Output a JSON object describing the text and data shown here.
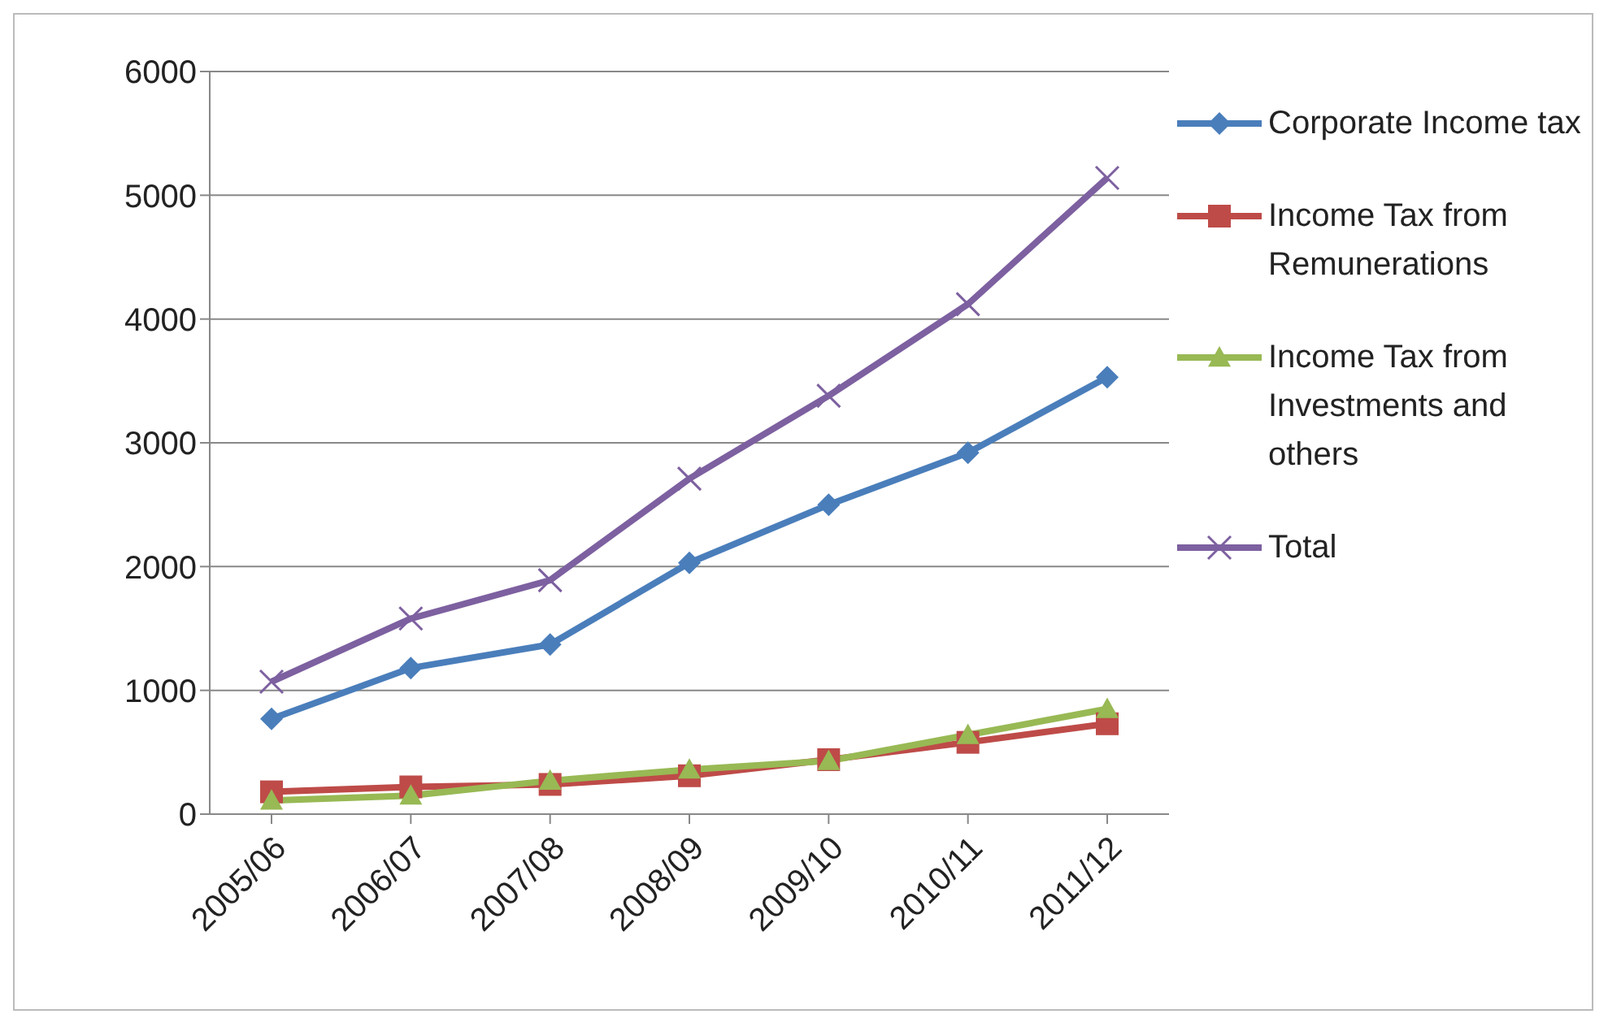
{
  "chart_data": {
    "type": "line",
    "categories": [
      "2005/06",
      "2006/07",
      "2007/08",
      "2008/09",
      "2009/10",
      "2010/11",
      "2011/12"
    ],
    "series": [
      {
        "name": "Corporate Income tax",
        "color": "#4a7ebb",
        "marker": "diamond",
        "values": [
          770,
          1180,
          1370,
          2030,
          2500,
          2920,
          3530
        ]
      },
      {
        "name": "Income Tax from Remunerations",
        "color": "#be4b48",
        "marker": "square",
        "values": [
          180,
          220,
          240,
          310,
          440,
          580,
          730
        ]
      },
      {
        "name": "Income Tax from Investments and others",
        "color": "#98b954",
        "marker": "triangle",
        "values": [
          110,
          150,
          270,
          360,
          430,
          640,
          850
        ]
      },
      {
        "name": "Total",
        "color": "#7d60a0",
        "marker": "cross",
        "values": [
          1070,
          1580,
          1890,
          2710,
          3380,
          4120,
          5140
        ]
      }
    ],
    "ylim": [
      0,
      6000
    ],
    "yticks": [
      0,
      1000,
      2000,
      3000,
      4000,
      5000,
      6000
    ],
    "grid": "y",
    "legend": "right"
  }
}
